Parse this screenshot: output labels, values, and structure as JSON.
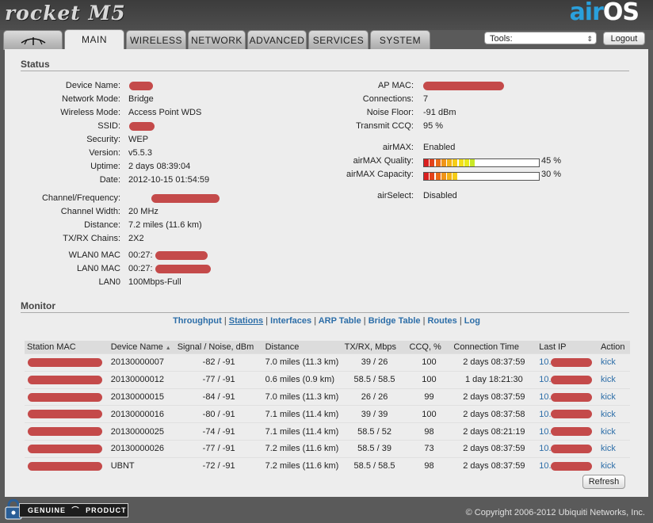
{
  "header": {
    "product_logo": "rocket M5",
    "brand_logo_air": "air",
    "brand_logo_os": "OS"
  },
  "tabs": [
    {
      "label": "MAIN",
      "active": true
    },
    {
      "label": "WIRELESS"
    },
    {
      "label": "NETWORK"
    },
    {
      "label": "ADVANCED"
    },
    {
      "label": "SERVICES"
    },
    {
      "label": "SYSTEM"
    }
  ],
  "toolbar": {
    "tools_selected": "Tools:",
    "logout_label": "Logout"
  },
  "status": {
    "title": "Status",
    "left": [
      {
        "label": "Device Name:",
        "value": ""
      },
      {
        "label": "Network Mode:",
        "value": "Bridge"
      },
      {
        "label": "Wireless Mode:",
        "value": "Access Point WDS"
      },
      {
        "label": "SSID:",
        "value": ""
      },
      {
        "label": "Security:",
        "value": "WEP"
      },
      {
        "label": "Version:",
        "value": "v5.5.3"
      },
      {
        "label": "Uptime:",
        "value": "2 days 08:39:04"
      },
      {
        "label": "Date:",
        "value": "2012-10-15 01:54:59"
      },
      {
        "label": "Channel/Frequency:",
        "value": ""
      },
      {
        "label": "Channel Width:",
        "value": "20 MHz"
      },
      {
        "label": "Distance:",
        "value": "7.2 miles (11.6 km)"
      },
      {
        "label": "TX/RX Chains:",
        "value": "2X2"
      },
      {
        "label": "WLAN0 MAC",
        "value": "00:27:"
      },
      {
        "label": "LAN0 MAC",
        "value": "00:27:"
      },
      {
        "label": "LAN0",
        "value": "100Mbps-Full"
      }
    ],
    "right": [
      {
        "label": "AP MAC:",
        "value": ""
      },
      {
        "label": "Connections:",
        "value": "7"
      },
      {
        "label": "Noise Floor:",
        "value": "-91 dBm"
      },
      {
        "label": "Transmit CCQ:",
        "value": "95 %"
      },
      {
        "label": "airMAX:",
        "value": "Enabled"
      },
      {
        "label": "airMAX Quality:",
        "value": "45 %"
      },
      {
        "label": "airMAX Capacity:",
        "value": "30 %"
      },
      {
        "label": "airSelect:",
        "value": "Disabled"
      }
    ],
    "airmax_quality_level": 0.45,
    "airmax_capacity_level": 0.3
  },
  "monitor": {
    "title": "Monitor",
    "links": [
      "Throughput",
      "Stations",
      "Interfaces",
      "ARP Table",
      "Bridge Table",
      "Routes",
      "Log"
    ],
    "active_link": "Stations",
    "columns": [
      "Station MAC",
      "Device Name",
      "Signal / Noise, dBm",
      "Distance",
      "TX/RX, Mbps",
      "CCQ, %",
      "Connection Time",
      "Last IP",
      "Action"
    ],
    "sort_indicator": "▲",
    "rows": [
      {
        "mac": "",
        "name": "20130000007",
        "signal": "-82 / -91",
        "distance": "7.0 miles (11.3 km)",
        "txrx": "39 / 26",
        "ccq": "100",
        "time": "2 days 08:37:59",
        "ip": "10.",
        "action": "kick"
      },
      {
        "mac": "",
        "name": "20130000012",
        "signal": "-77 / -91",
        "distance": "0.6 miles (0.9 km)",
        "txrx": "58.5 / 58.5",
        "ccq": "100",
        "time": "1 day 18:21:30",
        "ip": "10.",
        "action": "kick"
      },
      {
        "mac": "",
        "name": "20130000015",
        "signal": "-84 / -91",
        "distance": "7.0 miles (11.3 km)",
        "txrx": "26 / 26",
        "ccq": "99",
        "time": "2 days 08:37:59",
        "ip": "10.",
        "action": "kick"
      },
      {
        "mac": "",
        "name": "20130000016",
        "signal": "-80 / -91",
        "distance": "7.1 miles (11.4 km)",
        "txrx": "39 / 39",
        "ccq": "100",
        "time": "2 days 08:37:58",
        "ip": "10.",
        "action": "kick"
      },
      {
        "mac": "",
        "name": "20130000025",
        "signal": "-74 / -91",
        "distance": "7.1 miles (11.4 km)",
        "txrx": "58.5 / 52",
        "ccq": "98",
        "time": "2 days 08:21:19",
        "ip": "10.",
        "action": "kick"
      },
      {
        "mac": "",
        "name": "20130000026",
        "signal": "-77 / -91",
        "distance": "7.2 miles (11.6 km)",
        "txrx": "58.5 / 39",
        "ccq": "73",
        "time": "2 days 08:37:59",
        "ip": "10.",
        "action": "kick"
      },
      {
        "mac": "",
        "name": "UBNT",
        "signal": "-72 / -91",
        "distance": "7.2 miles (11.6 km)",
        "txrx": "58.5 / 58.5",
        "ccq": "98",
        "time": "2 days 08:37:59",
        "ip": "10.",
        "action": "kick"
      }
    ],
    "refresh_label": "Refresh"
  },
  "footer": {
    "badge_left": "GENUINE",
    "badge_right": "PRODUCT",
    "copyright": "© Copyright 2006-2012 Ubiquiti Networks, Inc."
  },
  "colors": {
    "link": "#2d6ea8",
    "redaction": "#c44a4a",
    "brand_blue": "#2aa0dc"
  }
}
